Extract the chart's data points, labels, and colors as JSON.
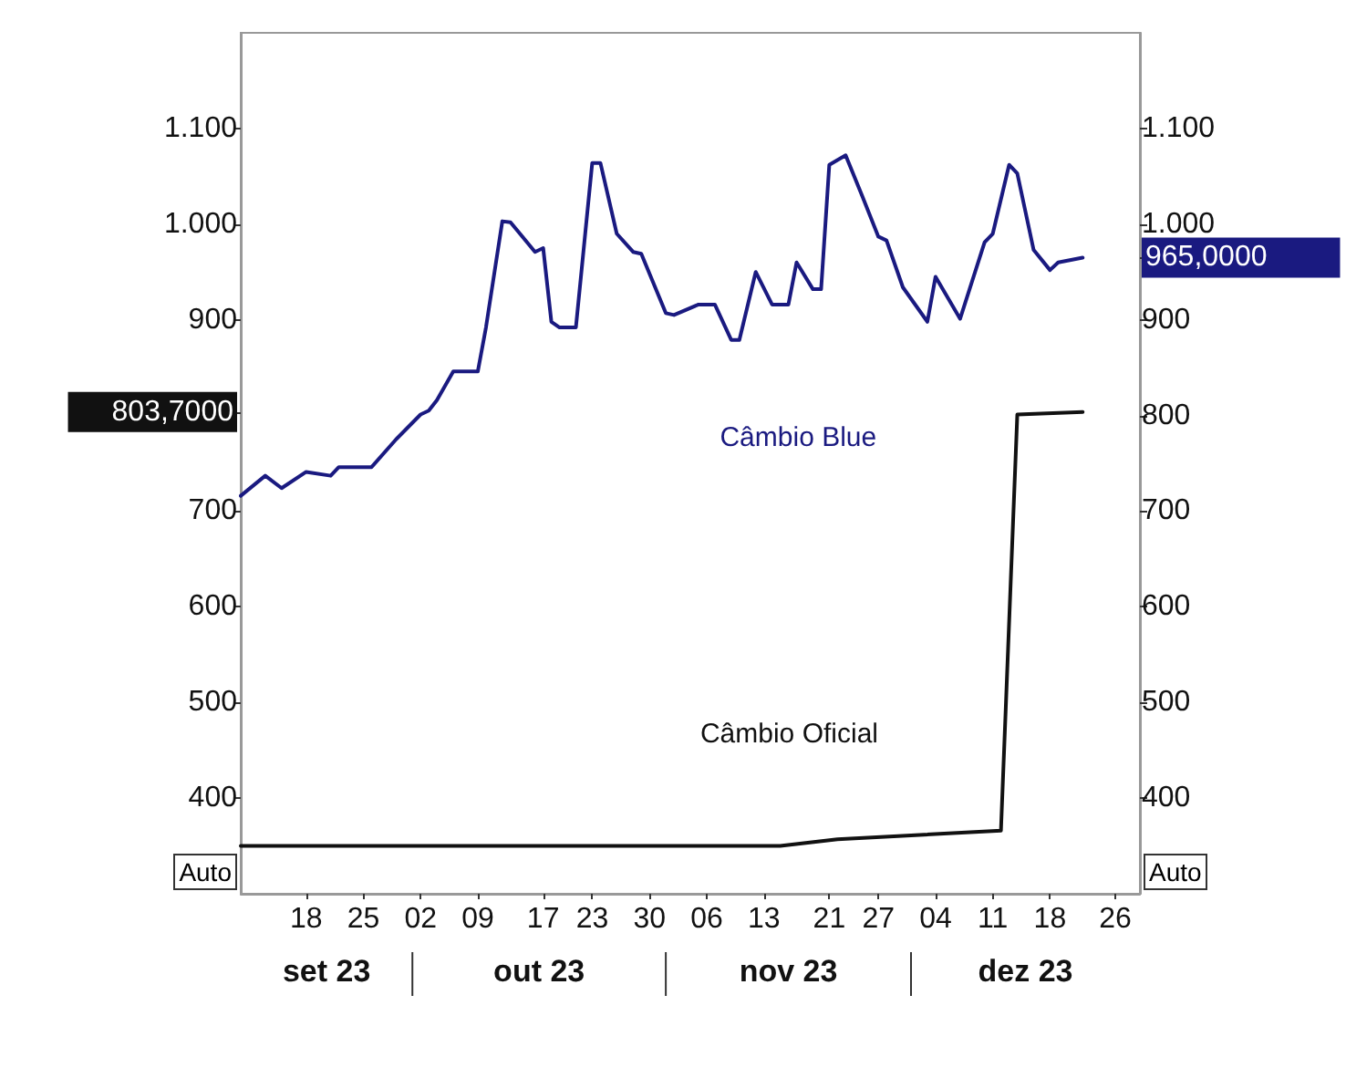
{
  "chart_data": {
    "type": "line",
    "xlim": [
      "--09-10",
      "--12-29"
    ],
    "xticks": [
      {
        "value": "--09-18",
        "label": "18"
      },
      {
        "value": "--09-25",
        "label": "25"
      },
      {
        "value": "--10-02",
        "label": "02"
      },
      {
        "value": "--10-09",
        "label": "09"
      },
      {
        "value": "--10-17",
        "label": "17"
      },
      {
        "value": "--10-23",
        "label": "23"
      },
      {
        "value": "--10-30",
        "label": "30"
      },
      {
        "value": "--11-06",
        "label": "06"
      },
      {
        "value": "--11-13",
        "label": "13"
      },
      {
        "value": "--11-21",
        "label": "21"
      },
      {
        "value": "--11-27",
        "label": "27"
      },
      {
        "value": "--12-04",
        "label": "04"
      },
      {
        "value": "--12-11",
        "label": "11"
      },
      {
        "value": "--12-18",
        "label": "18"
      },
      {
        "value": "--12-26",
        "label": "26"
      }
    ],
    "ylim": [
      300,
      1200
    ],
    "yticks": [
      400,
      500,
      600,
      700,
      {
        "value": 803.7,
        "label": "803,7000"
      },
      900,
      {
        "value": 1000,
        "label": "1.000"
      },
      {
        "value": 1100,
        "label": "1.100"
      }
    ],
    "y2lim": [
      300,
      1200
    ],
    "y2ticks": [
      400,
      500,
      600,
      700,
      800,
      900,
      {
        "value": 965,
        "label": "965,0000"
      },
      {
        "value": 1000,
        "label": "1.000"
      },
      {
        "value": 1100,
        "label": "1.100"
      }
    ],
    "grid": false,
    "legend": false,
    "series": [
      {
        "name": "Câmbio Blue",
        "color": "#1a1a80",
        "axis": "y2",
        "x": [
          "--09-10",
          "--09-13",
          "--09-15",
          "--09-18",
          "--09-21",
          "--09-22",
          "--09-26",
          "--09-29",
          "--10-02",
          "--10-03",
          "--10-04",
          "--10-06",
          "--10-09",
          "--10-10",
          "--10-12",
          "--10-13",
          "--10-16",
          "--10-17",
          "--10-18",
          "--10-19",
          "--10-21",
          "--10-23",
          "--10-24",
          "--10-26",
          "--10-28",
          "--10-29",
          "--11-01",
          "--11-02",
          "--11-05",
          "--11-07",
          "--11-09",
          "--11-10",
          "--11-12",
          "--11-14",
          "--11-16",
          "--11-17",
          "--11-19",
          "--11-20",
          "--11-21",
          "--11-23",
          "--11-25",
          "--11-27",
          "--11-28",
          "--11-30",
          "--12-03",
          "--12-04",
          "--12-07",
          "--12-10",
          "--12-11",
          "--12-13",
          "--12-14",
          "--12-16",
          "--12-18",
          "--12-19",
          "--12-22"
        ],
        "values": [
          716,
          737,
          724,
          741,
          737,
          746,
          746,
          775,
          801,
          805,
          816,
          846,
          846,
          892,
          1003,
          1002,
          971,
          975,
          898,
          892,
          892,
          1064,
          1064,
          990,
          971,
          969,
          907,
          905,
          916,
          916,
          879,
          879,
          950,
          916,
          916,
          960,
          932,
          932,
          1062,
          1072,
          1030,
          987,
          983,
          934,
          898,
          945,
          901,
          981,
          990,
          1062,
          1053,
          973,
          952,
          960,
          965
        ]
      },
      {
        "name": "Câmbio Oficial",
        "color": "#111111",
        "axis": "y",
        "x": [
          "--09-10",
          "--11-15",
          "--11-22",
          "--12-12",
          "--12-14",
          "--12-22"
        ],
        "values": [
          350,
          350,
          357,
          366,
          801,
          803.7
        ]
      }
    ],
    "annotations": [
      "set 23",
      "out 23",
      "nov 23",
      "dez 23",
      "Auto",
      "Auto"
    ]
  }
}
